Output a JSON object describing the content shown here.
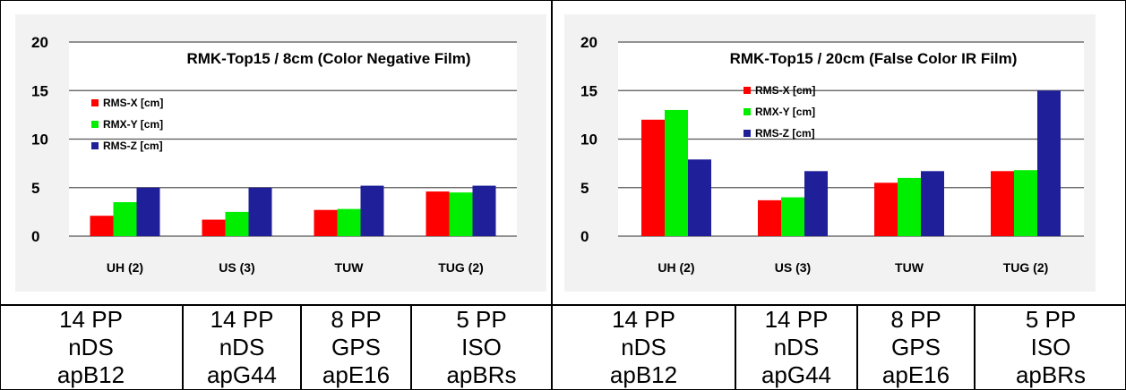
{
  "colors": {
    "rms_x": "#ff0000",
    "rmx_y": "#00ee00",
    "rms_z": "#1f1f99",
    "plot_area": "#ffffff",
    "chart_bg": "#f2f2f2",
    "grid": "#555555"
  },
  "chart_data": [
    {
      "type": "bar",
      "title": "RMK-Top15 / 8cm (Color Negative Film)",
      "categories": [
        "UH (2)",
        "US (3)",
        "TUW",
        "TUG (2)"
      ],
      "series": [
        {
          "name": "RMS-X [cm]",
          "values": [
            2.1,
            1.7,
            2.7,
            4.6
          ]
        },
        {
          "name": "RMX-Y [cm]",
          "values": [
            3.5,
            2.5,
            2.8,
            4.5
          ]
        },
        {
          "name": "RMS-Z [cm]",
          "values": [
            5.0,
            5.0,
            5.2,
            5.2
          ]
        }
      ],
      "yticks": [
        "0",
        "5",
        "10",
        "15",
        "20"
      ],
      "ylim": [
        0,
        20
      ],
      "grid": true,
      "legend_position": "top-left"
    },
    {
      "type": "bar",
      "title": "RMK-Top15 / 20cm (False Color IR Film)",
      "categories": [
        "UH (2)",
        "US (3)",
        "TUW",
        "TUG (2)"
      ],
      "series": [
        {
          "name": "RMS-X [cm]",
          "values": [
            12.0,
            3.7,
            5.5,
            6.7
          ]
        },
        {
          "name": "RMX-Y [cm]",
          "values": [
            13.0,
            4.0,
            6.0,
            6.8
          ]
        },
        {
          "name": "RMS-Z [cm]",
          "values": [
            7.9,
            6.7,
            6.7,
            15.0
          ]
        }
      ],
      "yticks": [
        "0",
        "5",
        "10",
        "15",
        "20"
      ],
      "ylim": [
        0,
        20
      ],
      "grid": true,
      "legend_position": "top-center"
    }
  ],
  "table": {
    "left": [
      [
        "14 PP",
        "nDS",
        "apB12"
      ],
      [
        "14 PP",
        "nDS",
        "apG44"
      ],
      [
        "8 PP",
        "GPS",
        "apE16"
      ],
      [
        "5 PP",
        "ISO",
        "apBRs"
      ]
    ],
    "right": [
      [
        "14 PP",
        "nDS",
        "apB12"
      ],
      [
        "14 PP",
        "nDS",
        "apG44"
      ],
      [
        "8 PP",
        "GPS",
        "apE16"
      ],
      [
        "5 PP",
        "ISO",
        "apBRs"
      ]
    ]
  }
}
